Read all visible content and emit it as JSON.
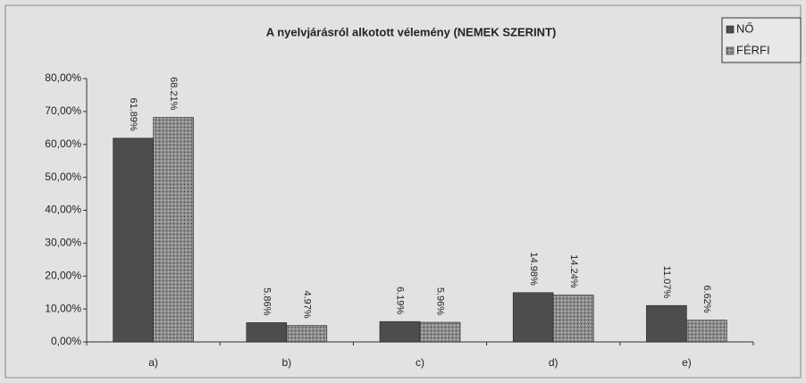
{
  "chart_data": {
    "type": "bar",
    "title": "A nyelvjárásról alkotott vélemény (NEMEK SZERINT)",
    "categories": [
      "a)",
      "b)",
      "c)",
      "d)",
      "e)"
    ],
    "series": [
      {
        "name": "NŐ",
        "color": "#4d4d4d",
        "values": [
          61.89,
          5.86,
          6.19,
          14.98,
          11.07
        ],
        "value_labels": [
          "61.89%",
          "5.86%",
          "6.19%",
          "14.98%",
          "11.07%"
        ]
      },
      {
        "name": "FÉRFI",
        "color": "#8c8c8c",
        "values": [
          68.21,
          4.97,
          5.96,
          14.24,
          6.62
        ],
        "value_labels": [
          "68.21%",
          "4.97%",
          "5.96%",
          "14.24%",
          "6.62%"
        ]
      }
    ],
    "ylim": [
      0,
      80
    ],
    "yticks": [
      {
        "value": 0,
        "label": "0,00%"
      },
      {
        "value": 10,
        "label": "10,00%"
      },
      {
        "value": 20,
        "label": "20,00%"
      },
      {
        "value": 30,
        "label": "30,00%"
      },
      {
        "value": 40,
        "label": "40,00%"
      },
      {
        "value": 50,
        "label": "50,00%"
      },
      {
        "value": 60,
        "label": "60,00%"
      },
      {
        "value": 70,
        "label": "70,00%"
      },
      {
        "value": 80,
        "label": "80,00%"
      }
    ],
    "grid": false,
    "legend": "top-right"
  }
}
